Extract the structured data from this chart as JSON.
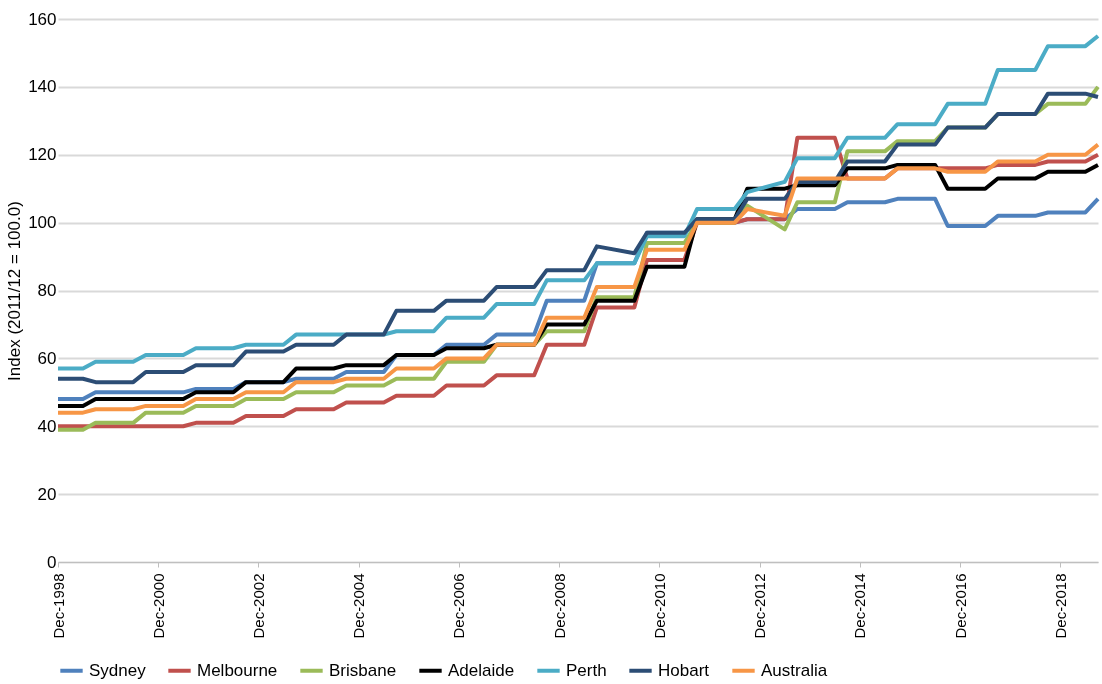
{
  "chart_data": {
    "type": "line",
    "ylabel": "Index (2011/12 = 100.0)",
    "x": [
      "1998-12",
      "1999-06",
      "1999-09",
      "2000-06",
      "2000-09",
      "2001-06",
      "2001-09",
      "2002-06",
      "2002-09",
      "2003-06",
      "2003-09",
      "2004-06",
      "2004-09",
      "2005-06",
      "2005-09",
      "2006-06",
      "2006-09",
      "2007-06",
      "2007-09",
      "2008-06",
      "2008-09",
      "2009-06",
      "2009-09",
      "2010-06",
      "2010-09",
      "2011-06",
      "2011-09",
      "2012-06",
      "2012-09",
      "2013-06",
      "2013-09",
      "2014-06",
      "2014-09",
      "2015-06",
      "2015-09",
      "2016-06",
      "2016-09",
      "2017-06",
      "2017-09",
      "2018-06",
      "2018-09",
      "2019-06",
      "2019-09"
    ],
    "series": [
      {
        "name": "Sydney",
        "color": "#4f81bd",
        "values": [
          48,
          48,
          50,
          50,
          50,
          50,
          51,
          51,
          53,
          53,
          54,
          54,
          56,
          56,
          61,
          61,
          64,
          64,
          67,
          67,
          77,
          77,
          88,
          88,
          97,
          97,
          100,
          100,
          101,
          101,
          104,
          104,
          106,
          106,
          107,
          107,
          99,
          99,
          102,
          102,
          103,
          103,
          107
        ]
      },
      {
        "name": "Melbourne",
        "color": "#c0504d",
        "values": [
          40,
          40,
          40,
          40,
          40,
          40,
          41,
          41,
          43,
          43,
          45,
          45,
          47,
          47,
          49,
          49,
          52,
          52,
          55,
          55,
          64,
          64,
          75,
          75,
          89,
          89,
          100,
          100,
          101,
          101,
          125,
          125,
          113,
          113,
          116,
          116,
          116,
          116,
          117,
          117,
          118,
          118,
          120
        ]
      },
      {
        "name": "Brisbane",
        "color": "#9bbb59",
        "values": [
          39,
          39,
          41,
          41,
          44,
          44,
          46,
          46,
          48,
          48,
          50,
          50,
          52,
          52,
          54,
          54,
          59,
          59,
          64,
          64,
          68,
          68,
          78,
          78,
          94,
          94,
          100,
          100,
          105,
          98,
          106,
          106,
          121,
          121,
          124,
          124,
          128,
          128,
          132,
          132,
          135,
          135,
          140
        ]
      },
      {
        "name": "Adelaide",
        "color": "#000000",
        "values": [
          46,
          46,
          48,
          48,
          48,
          48,
          50,
          50,
          53,
          53,
          57,
          57,
          58,
          58,
          61,
          61,
          63,
          63,
          64,
          64,
          70,
          70,
          77,
          77,
          87,
          87,
          101,
          101,
          110,
          110,
          111,
          111,
          116,
          116,
          117,
          117,
          110,
          110,
          113,
          113,
          115,
          115,
          117
        ]
      },
      {
        "name": "Perth",
        "color": "#4bacc6",
        "values": [
          57,
          57,
          59,
          59,
          61,
          61,
          63,
          63,
          64,
          64,
          67,
          67,
          67,
          67,
          68,
          68,
          72,
          72,
          76,
          76,
          83,
          83,
          88,
          88,
          96,
          96,
          104,
          104,
          109,
          112,
          119,
          119,
          125,
          125,
          129,
          129,
          135,
          135,
          145,
          145,
          152,
          152,
          155
        ]
      },
      {
        "name": "Hobart",
        "color": "#2c4d75",
        "values": [
          54,
          54,
          53,
          53,
          56,
          56,
          58,
          58,
          62,
          62,
          64,
          64,
          67,
          67,
          74,
          74,
          77,
          77,
          81,
          81,
          86,
          86,
          93,
          91,
          97,
          97,
          101,
          101,
          107,
          107,
          112,
          112,
          118,
          118,
          123,
          123,
          128,
          128,
          132,
          132,
          138,
          138,
          137
        ]
      },
      {
        "name": "Australia",
        "color": "#f79646",
        "values": [
          44,
          44,
          45,
          45,
          46,
          46,
          48,
          48,
          50,
          50,
          53,
          53,
          54,
          54,
          57,
          57,
          60,
          60,
          64,
          64,
          72,
          72,
          81,
          81,
          92,
          92,
          100,
          100,
          104,
          102,
          113,
          113,
          113,
          113,
          116,
          116,
          115,
          115,
          118,
          118,
          120,
          120,
          123
        ]
      }
    ],
    "xlim": [
      "1998-12",
      "2019-09"
    ],
    "xticks": [
      {
        "value": "1998-12",
        "label": "Dec-1998"
      },
      {
        "value": "2000-12",
        "label": "Dec-2000"
      },
      {
        "value": "2002-12",
        "label": "Dec-2002"
      },
      {
        "value": "2004-12",
        "label": "Dec-2004"
      },
      {
        "value": "2006-12",
        "label": "Dec-2006"
      },
      {
        "value": "2008-12",
        "label": "Dec-2008"
      },
      {
        "value": "2010-12",
        "label": "Dec-2010"
      },
      {
        "value": "2012-12",
        "label": "Dec-2012"
      },
      {
        "value": "2014-12",
        "label": "Dec-2014"
      },
      {
        "value": "2016-12",
        "label": "Dec-2016"
      },
      {
        "value": "2018-12",
        "label": "Dec-2018"
      }
    ],
    "ylim": [
      0,
      160
    ],
    "yticks": [
      0,
      20,
      40,
      60,
      80,
      100,
      120,
      140,
      160
    ],
    "grid": "y",
    "legend": "bottom",
    "line_style": "solid"
  }
}
